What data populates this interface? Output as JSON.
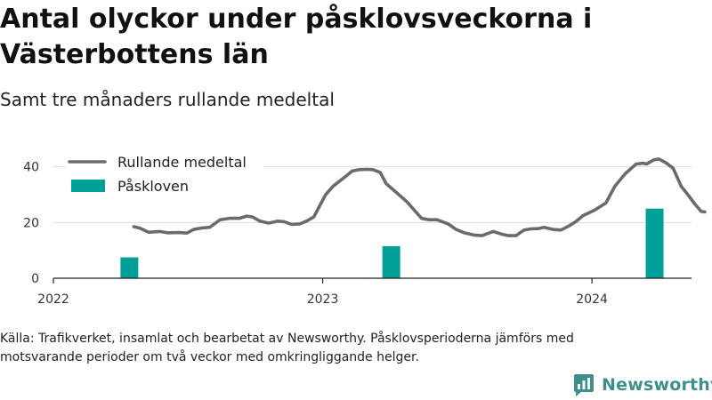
{
  "title": "Antal olyckor under påsklovsveckorna i Västerbottens län",
  "subtitle": "Samt tre månaders rullande medeltal",
  "source": "Källa: Trafikverket, insamlat och bearbetat av Newsworthy. Påsklovsperioderna jämförs med motsvarande perioder om två veckor med omkringliggande helger.",
  "brand": {
    "name": "Newsworthy",
    "icon": "newsworthy-logo-icon"
  },
  "colors": {
    "line": "#6b6b6b",
    "bars": "#00a098",
    "grid": "#dcdcdc",
    "brand": "#3f8f8c"
  },
  "chart_data": {
    "type": "bar",
    "xlim": [
      "2022-01-01",
      "2024-05-15"
    ],
    "ylim": [
      0,
      45
    ],
    "x_ticks": [
      "2022",
      "2023",
      "2024"
    ],
    "y_ticks": [
      0,
      20,
      40
    ],
    "grid": true,
    "legend_placement": "top-left",
    "series": [
      {
        "name": "Rullande medeltal",
        "type": "line",
        "points": [
          [
            "2022-04-20",
            18.5
          ],
          [
            "2022-04-28",
            18.0
          ],
          [
            "2022-05-10",
            16.5
          ],
          [
            "2022-05-25",
            16.8
          ],
          [
            "2022-06-05",
            16.3
          ],
          [
            "2022-06-20",
            16.4
          ],
          [
            "2022-07-01",
            16.2
          ],
          [
            "2022-07-10",
            17.5
          ],
          [
            "2022-07-20",
            18.0
          ],
          [
            "2022-08-01",
            18.3
          ],
          [
            "2022-08-15",
            21.0
          ],
          [
            "2022-08-28",
            21.5
          ],
          [
            "2022-09-10",
            21.5
          ],
          [
            "2022-09-20",
            22.3
          ],
          [
            "2022-09-28",
            22.0
          ],
          [
            "2022-10-08",
            20.5
          ],
          [
            "2022-10-20",
            19.8
          ],
          [
            "2022-11-01",
            20.5
          ],
          [
            "2022-11-10",
            20.3
          ],
          [
            "2022-11-20",
            19.3
          ],
          [
            "2022-12-01",
            19.5
          ],
          [
            "2022-12-10",
            20.5
          ],
          [
            "2022-12-20",
            22.0
          ],
          [
            "2022-12-28",
            26.0
          ],
          [
            "2023-01-05",
            30.0
          ],
          [
            "2023-01-15",
            33.0
          ],
          [
            "2023-02-01",
            36.5
          ],
          [
            "2023-02-10",
            38.5
          ],
          [
            "2023-02-20",
            39.0
          ],
          [
            "2023-03-01",
            39.1
          ],
          [
            "2023-03-10",
            39.0
          ],
          [
            "2023-03-20",
            38.0
          ],
          [
            "2023-03-28",
            34.0
          ],
          [
            "2023-04-10",
            31.0
          ],
          [
            "2023-04-25",
            27.5
          ],
          [
            "2023-05-05",
            24.5
          ],
          [
            "2023-05-15",
            21.5
          ],
          [
            "2023-05-25",
            21.0
          ],
          [
            "2023-06-05",
            21.0
          ],
          [
            "2023-06-20",
            19.5
          ],
          [
            "2023-07-01",
            17.5
          ],
          [
            "2023-07-12",
            16.3
          ],
          [
            "2023-07-25",
            15.5
          ],
          [
            "2023-08-05",
            15.3
          ],
          [
            "2023-08-20",
            16.8
          ],
          [
            "2023-09-01",
            15.8
          ],
          [
            "2023-09-10",
            15.3
          ],
          [
            "2023-09-20",
            15.3
          ],
          [
            "2023-10-01",
            17.3
          ],
          [
            "2023-10-10",
            17.7
          ],
          [
            "2023-10-20",
            17.8
          ],
          [
            "2023-10-28",
            18.3
          ],
          [
            "2023-11-10",
            17.5
          ],
          [
            "2023-11-20",
            17.3
          ],
          [
            "2023-12-01",
            18.8
          ],
          [
            "2023-12-10",
            20.3
          ],
          [
            "2023-12-20",
            22.5
          ],
          [
            "2024-01-05",
            24.5
          ],
          [
            "2024-01-20",
            27.0
          ],
          [
            "2024-02-01",
            33.0
          ],
          [
            "2024-02-15",
            37.5
          ],
          [
            "2024-03-01",
            41.0
          ],
          [
            "2024-03-10",
            41.3
          ],
          [
            "2024-03-15",
            41.0
          ],
          [
            "2024-03-25",
            42.5
          ],
          [
            "2024-04-01",
            42.8
          ],
          [
            "2024-04-10",
            41.5
          ],
          [
            "2024-04-20",
            39.5
          ],
          [
            "2024-05-01",
            33.0
          ],
          [
            "2024-05-10",
            30.0
          ],
          [
            "2024-05-20",
            26.5
          ],
          [
            "2024-05-28",
            24.0
          ],
          [
            "2024-06-02",
            23.8
          ]
        ]
      },
      {
        "name": "Påskloven",
        "type": "bar",
        "points": [
          [
            "2022-04-14",
            7.5
          ],
          [
            "2023-04-04",
            11.5
          ],
          [
            "2024-03-26",
            25.0
          ]
        ]
      }
    ]
  }
}
